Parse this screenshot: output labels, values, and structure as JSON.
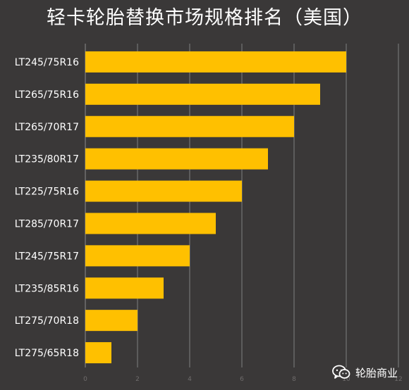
{
  "title": "轻卡轮胎替换市场规格排名（美国）",
  "watermark": {
    "text": "轮胎商业",
    "icon": "wechat-icon"
  },
  "colors": {
    "background": "#3a3838",
    "bar": "#ffc000",
    "grid": "#7f7f7f",
    "text": "#ffffff",
    "tick": "#6f6c6c"
  },
  "chart_data": {
    "type": "bar",
    "orientation": "horizontal",
    "title": "轻卡轮胎替换市场规格排名（美国）",
    "categories": [
      "LT245/75R16",
      "LT265/75R16",
      "LT265/70R17",
      "LT235/80R17",
      "LT225/75R16",
      "LT285/70R17",
      "LT245/75R17",
      "LT235/85R16",
      "LT275/70R18",
      "LT275/65R18"
    ],
    "values": [
      10,
      9,
      8,
      7,
      6,
      5,
      4,
      3,
      2,
      1
    ],
    "xlim": [
      0,
      12
    ],
    "xticks": [
      0,
      2,
      4,
      6,
      8,
      10,
      12
    ],
    "xlabel": "",
    "ylabel": "",
    "grid": "vertical",
    "legend": "none"
  }
}
